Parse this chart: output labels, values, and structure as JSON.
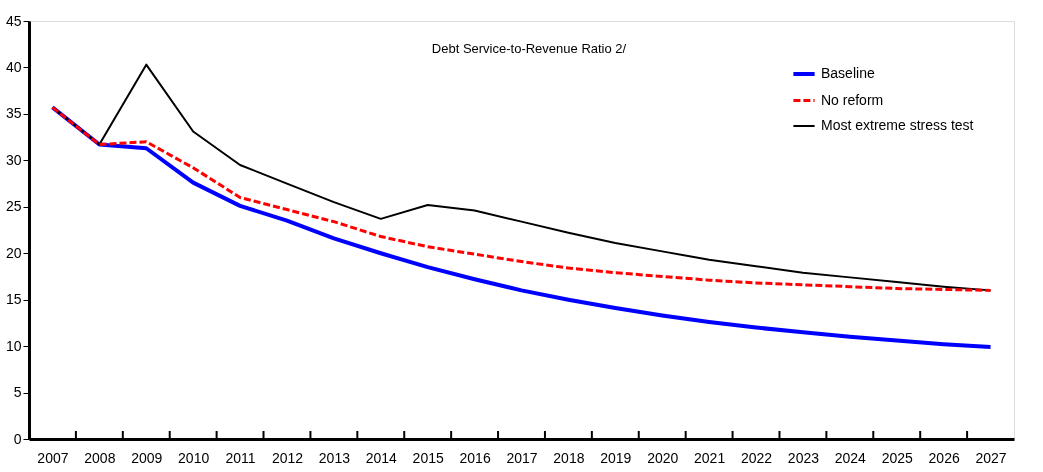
{
  "chart_data": {
    "type": "line",
    "title": "Debt Service-to-Revenue Ratio 2/",
    "categories": [
      "2007",
      "2008",
      "2009",
      "2010",
      "2011",
      "2012",
      "2013",
      "2014",
      "2015",
      "2016",
      "2017",
      "2018",
      "2019",
      "2020",
      "2021",
      "2022",
      "2023",
      "2024",
      "2025",
      "2026",
      "2027"
    ],
    "series": [
      {
        "name": "Baseline",
        "color": "#0000ff",
        "line_style": "solid",
        "values": [
          35.7,
          31.7,
          31.3,
          27.6,
          25.1,
          23.5,
          21.6,
          20.0,
          18.5,
          17.2,
          16.0,
          15.0,
          14.1,
          13.3,
          12.6,
          12.0,
          11.5,
          11.0,
          10.6,
          10.2,
          9.9
        ]
      },
      {
        "name": "No reform",
        "color": "#ff0000",
        "line_style": "dashed",
        "values": [
          35.7,
          31.7,
          32.0,
          29.2,
          26.0,
          24.7,
          23.4,
          21.8,
          20.7,
          19.9,
          19.1,
          18.4,
          17.9,
          17.5,
          17.1,
          16.8,
          16.6,
          16.4,
          16.2,
          16.1,
          16.0
        ]
      },
      {
        "name": "Most extreme stress test",
        "color": "#000000",
        "line_style": "solid",
        "values": [
          35.7,
          31.7,
          40.3,
          33.1,
          29.5,
          27.5,
          25.5,
          23.7,
          25.2,
          24.6,
          23.4,
          22.2,
          21.1,
          20.2,
          19.3,
          18.6,
          17.9,
          17.4,
          16.9,
          16.4,
          16.0
        ]
      }
    ],
    "ylim": [
      0,
      45
    ],
    "yticks": [
      0,
      5,
      10,
      15,
      20,
      25,
      30,
      35,
      40,
      45
    ],
    "grid": false,
    "legend": "top right",
    "marker": "none"
  }
}
